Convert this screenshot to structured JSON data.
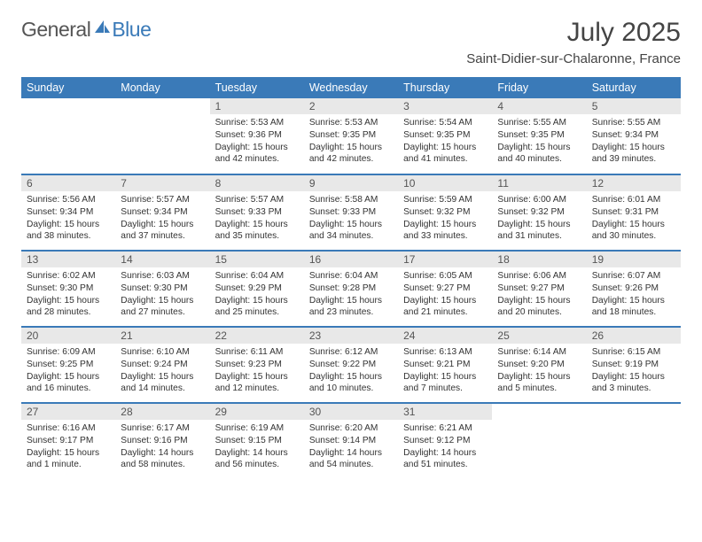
{
  "logo": {
    "part1": "General",
    "part2": "Blue"
  },
  "title": "July 2025",
  "location": "Saint-Didier-sur-Chalaronne, France",
  "colors": {
    "header_bg": "#3a7ab8",
    "header_text": "#ffffff",
    "daynum_bg": "#e8e8e8",
    "row_divider": "#3a7ab8",
    "text": "#333333"
  },
  "weekdays": [
    "Sunday",
    "Monday",
    "Tuesday",
    "Wednesday",
    "Thursday",
    "Friday",
    "Saturday"
  ],
  "weeks": [
    [
      {
        "blank": true
      },
      {
        "blank": true
      },
      {
        "day": "1",
        "sunrise": "Sunrise: 5:53 AM",
        "sunset": "Sunset: 9:36 PM",
        "daylight": "Daylight: 15 hours and 42 minutes."
      },
      {
        "day": "2",
        "sunrise": "Sunrise: 5:53 AM",
        "sunset": "Sunset: 9:35 PM",
        "daylight": "Daylight: 15 hours and 42 minutes."
      },
      {
        "day": "3",
        "sunrise": "Sunrise: 5:54 AM",
        "sunset": "Sunset: 9:35 PM",
        "daylight": "Daylight: 15 hours and 41 minutes."
      },
      {
        "day": "4",
        "sunrise": "Sunrise: 5:55 AM",
        "sunset": "Sunset: 9:35 PM",
        "daylight": "Daylight: 15 hours and 40 minutes."
      },
      {
        "day": "5",
        "sunrise": "Sunrise: 5:55 AM",
        "sunset": "Sunset: 9:34 PM",
        "daylight": "Daylight: 15 hours and 39 minutes."
      }
    ],
    [
      {
        "day": "6",
        "sunrise": "Sunrise: 5:56 AM",
        "sunset": "Sunset: 9:34 PM",
        "daylight": "Daylight: 15 hours and 38 minutes."
      },
      {
        "day": "7",
        "sunrise": "Sunrise: 5:57 AM",
        "sunset": "Sunset: 9:34 PM",
        "daylight": "Daylight: 15 hours and 37 minutes."
      },
      {
        "day": "8",
        "sunrise": "Sunrise: 5:57 AM",
        "sunset": "Sunset: 9:33 PM",
        "daylight": "Daylight: 15 hours and 35 minutes."
      },
      {
        "day": "9",
        "sunrise": "Sunrise: 5:58 AM",
        "sunset": "Sunset: 9:33 PM",
        "daylight": "Daylight: 15 hours and 34 minutes."
      },
      {
        "day": "10",
        "sunrise": "Sunrise: 5:59 AM",
        "sunset": "Sunset: 9:32 PM",
        "daylight": "Daylight: 15 hours and 33 minutes."
      },
      {
        "day": "11",
        "sunrise": "Sunrise: 6:00 AM",
        "sunset": "Sunset: 9:32 PM",
        "daylight": "Daylight: 15 hours and 31 minutes."
      },
      {
        "day": "12",
        "sunrise": "Sunrise: 6:01 AM",
        "sunset": "Sunset: 9:31 PM",
        "daylight": "Daylight: 15 hours and 30 minutes."
      }
    ],
    [
      {
        "day": "13",
        "sunrise": "Sunrise: 6:02 AM",
        "sunset": "Sunset: 9:30 PM",
        "daylight": "Daylight: 15 hours and 28 minutes."
      },
      {
        "day": "14",
        "sunrise": "Sunrise: 6:03 AM",
        "sunset": "Sunset: 9:30 PM",
        "daylight": "Daylight: 15 hours and 27 minutes."
      },
      {
        "day": "15",
        "sunrise": "Sunrise: 6:04 AM",
        "sunset": "Sunset: 9:29 PM",
        "daylight": "Daylight: 15 hours and 25 minutes."
      },
      {
        "day": "16",
        "sunrise": "Sunrise: 6:04 AM",
        "sunset": "Sunset: 9:28 PM",
        "daylight": "Daylight: 15 hours and 23 minutes."
      },
      {
        "day": "17",
        "sunrise": "Sunrise: 6:05 AM",
        "sunset": "Sunset: 9:27 PM",
        "daylight": "Daylight: 15 hours and 21 minutes."
      },
      {
        "day": "18",
        "sunrise": "Sunrise: 6:06 AM",
        "sunset": "Sunset: 9:27 PM",
        "daylight": "Daylight: 15 hours and 20 minutes."
      },
      {
        "day": "19",
        "sunrise": "Sunrise: 6:07 AM",
        "sunset": "Sunset: 9:26 PM",
        "daylight": "Daylight: 15 hours and 18 minutes."
      }
    ],
    [
      {
        "day": "20",
        "sunrise": "Sunrise: 6:09 AM",
        "sunset": "Sunset: 9:25 PM",
        "daylight": "Daylight: 15 hours and 16 minutes."
      },
      {
        "day": "21",
        "sunrise": "Sunrise: 6:10 AM",
        "sunset": "Sunset: 9:24 PM",
        "daylight": "Daylight: 15 hours and 14 minutes."
      },
      {
        "day": "22",
        "sunrise": "Sunrise: 6:11 AM",
        "sunset": "Sunset: 9:23 PM",
        "daylight": "Daylight: 15 hours and 12 minutes."
      },
      {
        "day": "23",
        "sunrise": "Sunrise: 6:12 AM",
        "sunset": "Sunset: 9:22 PM",
        "daylight": "Daylight: 15 hours and 10 minutes."
      },
      {
        "day": "24",
        "sunrise": "Sunrise: 6:13 AM",
        "sunset": "Sunset: 9:21 PM",
        "daylight": "Daylight: 15 hours and 7 minutes."
      },
      {
        "day": "25",
        "sunrise": "Sunrise: 6:14 AM",
        "sunset": "Sunset: 9:20 PM",
        "daylight": "Daylight: 15 hours and 5 minutes."
      },
      {
        "day": "26",
        "sunrise": "Sunrise: 6:15 AM",
        "sunset": "Sunset: 9:19 PM",
        "daylight": "Daylight: 15 hours and 3 minutes."
      }
    ],
    [
      {
        "day": "27",
        "sunrise": "Sunrise: 6:16 AM",
        "sunset": "Sunset: 9:17 PM",
        "daylight": "Daylight: 15 hours and 1 minute."
      },
      {
        "day": "28",
        "sunrise": "Sunrise: 6:17 AM",
        "sunset": "Sunset: 9:16 PM",
        "daylight": "Daylight: 14 hours and 58 minutes."
      },
      {
        "day": "29",
        "sunrise": "Sunrise: 6:19 AM",
        "sunset": "Sunset: 9:15 PM",
        "daylight": "Daylight: 14 hours and 56 minutes."
      },
      {
        "day": "30",
        "sunrise": "Sunrise: 6:20 AM",
        "sunset": "Sunset: 9:14 PM",
        "daylight": "Daylight: 14 hours and 54 minutes."
      },
      {
        "day": "31",
        "sunrise": "Sunrise: 6:21 AM",
        "sunset": "Sunset: 9:12 PM",
        "daylight": "Daylight: 14 hours and 51 minutes."
      },
      {
        "blank": true
      },
      {
        "blank": true
      }
    ]
  ]
}
